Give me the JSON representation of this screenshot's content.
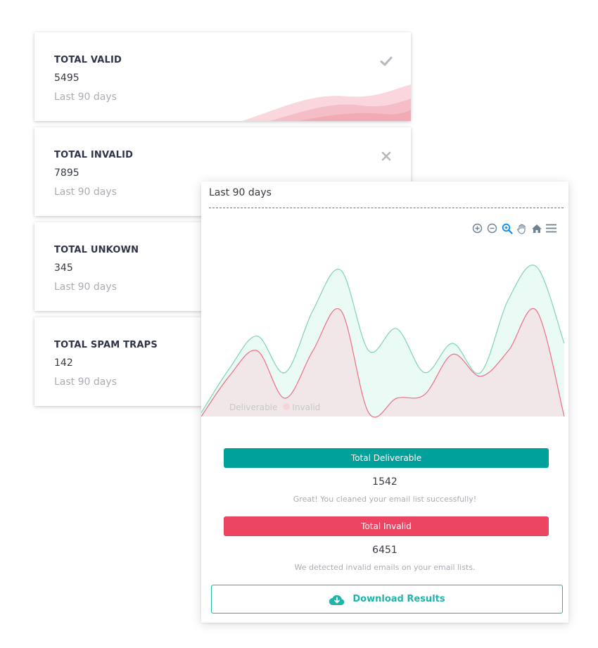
{
  "stats": [
    {
      "title": "TOTAL VALID",
      "value": "5495",
      "period": "Last 90 days",
      "icon": "check-icon"
    },
    {
      "title": "TOTAL INVALID",
      "value": "7895",
      "period": "Last 90 days",
      "icon": "close-icon"
    },
    {
      "title": "TOTAL UNKOWN",
      "value": "345",
      "period": "Last 90 days"
    },
    {
      "title": "TOTAL SPAM TRAPS",
      "value": "142",
      "period": "Last 90 days"
    }
  ],
  "chart_card": {
    "title": "Last 90 days",
    "toolbar": [
      "zoom-in-icon",
      "zoom-out-icon",
      "selection-zoom-icon",
      "pan-hand-icon",
      "home-icon",
      "menu-icon"
    ],
    "legend": [
      "Deliverable",
      "Invalid"
    ],
    "deliverable": {
      "label": "Total Deliverable",
      "value": "1542",
      "message": "Great! You cleaned your email list successfully!"
    },
    "invalid": {
      "label": "Total Invalid",
      "value": "6451",
      "message": "We detected invalid emails on your email lists."
    },
    "download_label": "Download Results"
  },
  "colors": {
    "accent_green": "#00a19a",
    "accent_red": "#ec4562",
    "deliverable_line": "#7fd3b5",
    "invalid_line": "#ee6e83"
  },
  "chart_data": {
    "type": "area",
    "series": [
      {
        "name": "Deliverable",
        "values": [
          2,
          26,
          44,
          24,
          58,
          80,
          36,
          48,
          24,
          40,
          24,
          64,
          82,
          40
        ]
      },
      {
        "name": "Invalid",
        "values": [
          0,
          22,
          36,
          10,
          36,
          58,
          2,
          10,
          12,
          34,
          22,
          36,
          58,
          0
        ]
      }
    ]
  }
}
